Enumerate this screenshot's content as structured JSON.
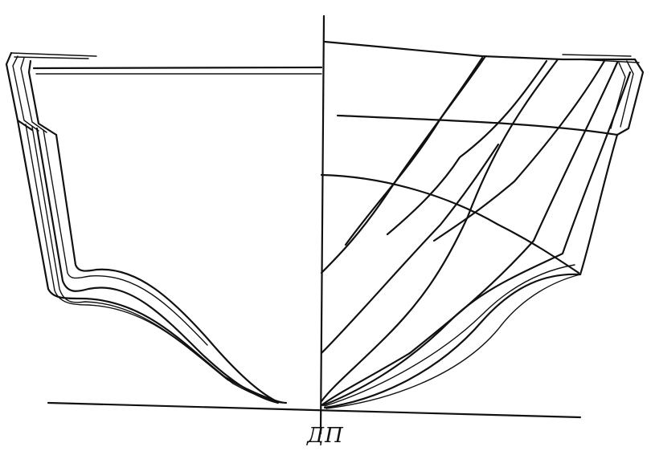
{
  "diagram": {
    "centerline_label": "ДП"
  }
}
